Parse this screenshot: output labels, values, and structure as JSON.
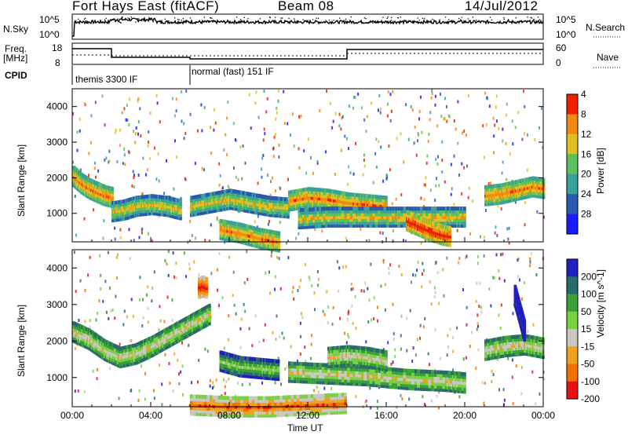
{
  "header": {
    "station": "Fort Hays East (fitACF)",
    "beam": "Beam 08",
    "date": "14/Jul/2012"
  },
  "top_panels": {
    "nsky_label": "N.Sky",
    "nsky_ticks": [
      "10^5",
      "10^0"
    ],
    "nsearch_label": "N.Search",
    "nsearch_ticks": [
      "10^5",
      "10^0"
    ],
    "freq_label_1": "Freq.",
    "freq_label_2": "[MHz]",
    "freq_ticks": [
      "18",
      "8"
    ],
    "nave_label": "Nave",
    "nave_ticks": [
      "60",
      "0"
    ],
    "cpid_label": "CPID",
    "cpid_segments": [
      "themis 3300 IF",
      "normal (fast) 151 IF"
    ]
  },
  "chart_data": [
    {
      "type": "heatmap",
      "name": "Power",
      "ylabel": "Slant Range [km]",
      "xlabel": "",
      "x_ticks": [
        "00:00",
        "04:00",
        "08:00",
        "12:00",
        "16:00",
        "20:00",
        "00:00"
      ],
      "y_ticks": [
        1000,
        2000,
        3000,
        4000
      ],
      "ylim": [
        200,
        4500
      ],
      "xlim_hours": [
        0,
        24
      ],
      "colorbar": {
        "label": "Power [dB]",
        "ticks": [
          4,
          8,
          12,
          16,
          20,
          24,
          28
        ],
        "colors": [
          "#1a1aff",
          "#2a5ab0",
          "#3aa09a",
          "#5cc05c",
          "#e0c020",
          "#f08a10",
          "#ee2000"
        ]
      },
      "bands": [
        {
          "x": [
            0.0,
            0.4,
            0.8,
            1.2,
            1.6,
            2.0
          ],
          "y": [
            2100,
            1900,
            1750,
            1650,
            1550,
            1500
          ],
          "level": 5
        },
        {
          "x": [
            2.0,
            2.6,
            3.2,
            4.0,
            4.8,
            5.5
          ],
          "y": [
            1100,
            1150,
            1250,
            1300,
            1250,
            1150
          ],
          "level": 4
        },
        {
          "x": [
            6.0,
            7.0,
            8.0,
            9.0,
            10.0,
            11.0
          ],
          "y": [
            1250,
            1350,
            1450,
            1350,
            1250,
            1200
          ],
          "level": 4
        },
        {
          "x": [
            11.0,
            12.0,
            13.0,
            14.0,
            15.0,
            16.0
          ],
          "y": [
            1400,
            1500,
            1450,
            1350,
            1300,
            1250
          ],
          "level": 5
        },
        {
          "x": [
            11.5,
            13.0,
            15.0,
            17.0,
            19.0,
            20.0
          ],
          "y": [
            900,
            950,
            950,
            950,
            950,
            950
          ],
          "level": 4
        },
        {
          "x": [
            17.0,
            17.6,
            18.2,
            18.8,
            19.2
          ],
          "y": [
            850,
            700,
            550,
            450,
            400
          ],
          "level": 6
        },
        {
          "x": [
            21.0,
            21.8,
            22.6,
            23.4,
            24.0
          ],
          "y": [
            1550,
            1600,
            1700,
            1800,
            1750
          ],
          "level": 5
        },
        {
          "x": [
            7.5,
            8.5,
            9.5,
            10.0,
            10.5
          ],
          "y": [
            600,
            500,
            350,
            300,
            250
          ],
          "level": 5
        }
      ]
    },
    {
      "type": "heatmap",
      "name": "Velocity",
      "ylabel": "Slant Range [km]",
      "xlabel": "Time UT",
      "x_ticks": [
        "00:00",
        "04:00",
        "08:00",
        "12:00",
        "16:00",
        "20:00",
        "00:00"
      ],
      "y_ticks": [
        1000,
        2000,
        3000,
        4000
      ],
      "ylim": [
        200,
        4500
      ],
      "xlim_hours": [
        0,
        24
      ],
      "colorbar": {
        "label": "Velocity [m s^-1]",
        "ticks": [
          200,
          100,
          50,
          15,
          -15,
          -50,
          -100,
          -200
        ],
        "colors": [
          "#2020c0",
          "#2a6a6a",
          "#3aa03a",
          "#7ad040",
          "#c8c8c0",
          "#f0a020",
          "#f07000",
          "#e81010"
        ]
      },
      "bands": [
        {
          "x": [
            0.0,
            0.8,
            1.6,
            2.4,
            3.2,
            4.0,
            5.0,
            6.0,
            7.0
          ],
          "y": [
            2300,
            2100,
            1800,
            1600,
            1700,
            1900,
            2200,
            2500,
            2800
          ],
          "level": 4
        },
        {
          "x": [
            7.5,
            8.5,
            9.5,
            10.5
          ],
          "y": [
            1500,
            1350,
            1300,
            1250
          ],
          "level": 3
        },
        {
          "x": [
            11.0,
            13.0,
            15.0,
            17.0,
            19.0,
            20.0
          ],
          "y": [
            1200,
            1150,
            1100,
            1000,
            950,
            900
          ],
          "level": 4
        },
        {
          "x": [
            13.0,
            14.0,
            15.0,
            16.0
          ],
          "y": [
            1600,
            1650,
            1600,
            1500
          ],
          "level": 4
        },
        {
          "x": [
            21.0,
            22.0,
            23.0,
            24.0
          ],
          "y": [
            1800,
            1900,
            1950,
            1850
          ],
          "level": 4
        },
        {
          "x": [
            6.0,
            8.0,
            10.0,
            12.0,
            14.0
          ],
          "y": [
            300,
            250,
            250,
            300,
            350
          ],
          "level": 6
        },
        {
          "x": [
            6.4,
            6.6,
            6.8
          ],
          "y": [
            3500,
            3550,
            3500
          ],
          "level": 7
        },
        {
          "x": [
            22.5,
            22.8,
            23.0
          ],
          "y": [
            3300,
            2700,
            2300
          ],
          "level": 0
        }
      ]
    }
  ]
}
